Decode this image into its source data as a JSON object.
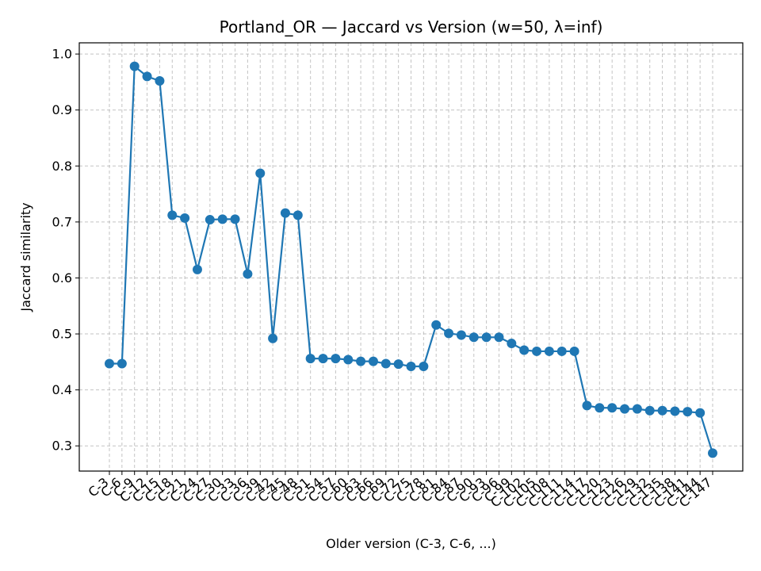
{
  "chart_data": {
    "type": "line",
    "title": "Portland_OR — Jaccard vs Version (w=50, λ=inf)",
    "xlabel": "Older version (C-3, C-6, ...)",
    "ylabel": "Jaccard similarity",
    "ylim": [
      0.255,
      1.02
    ],
    "yticks": [
      0.3,
      0.4,
      0.5,
      0.6,
      0.7,
      0.8,
      0.9,
      1.0
    ],
    "grid": true,
    "x": [
      "C-3",
      "C-6",
      "C-9",
      "C-12",
      "C-15",
      "C-18",
      "C-21",
      "C-24",
      "C-27",
      "C-30",
      "C-33",
      "C-36",
      "C-39",
      "C-42",
      "C-45",
      "C-48",
      "C-51",
      "C-54",
      "C-57",
      "C-60",
      "C-63",
      "C-66",
      "C-69",
      "C-72",
      "C-75",
      "C-78",
      "C-81",
      "C-84",
      "C-87",
      "C-90",
      "C-93",
      "C-96",
      "C-99",
      "C-102",
      "C-105",
      "C-108",
      "C-111",
      "C-114",
      "C-117",
      "C-120",
      "C-123",
      "C-126",
      "C-129",
      "C-132",
      "C-135",
      "C-138",
      "C-141",
      "C-144",
      "C-147"
    ],
    "series": [
      {
        "values": [
          0.447,
          0.447,
          0.978,
          0.96,
          0.952,
          0.712,
          0.707,
          0.615,
          0.704,
          0.705,
          0.705,
          0.607,
          0.787,
          0.492,
          0.716,
          0.712,
          0.456,
          0.456,
          0.456,
          0.454,
          0.451,
          0.451,
          0.447,
          0.446,
          0.442,
          0.442,
          0.516,
          0.501,
          0.498,
          0.494,
          0.494,
          0.494,
          0.483,
          0.471,
          0.469,
          0.469,
          0.469,
          0.469,
          0.372,
          0.368,
          0.368,
          0.366,
          0.366,
          0.363,
          0.363,
          0.362,
          0.361,
          0.359,
          0.287
        ]
      }
    ]
  }
}
